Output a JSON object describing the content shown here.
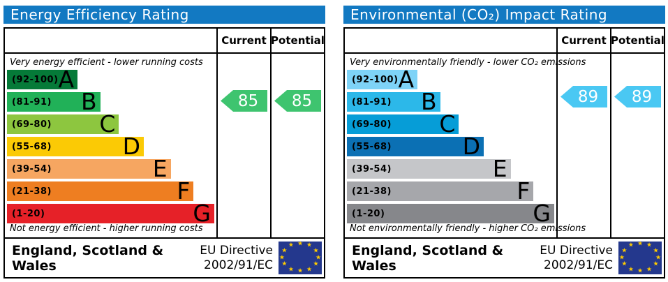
{
  "chart_data": [
    {
      "type": "bar",
      "title": "Energy Efficiency Rating",
      "categories": [
        "A (92-100)",
        "B (81-91)",
        "C (69-80)",
        "D (55-68)",
        "E (39-54)",
        "F (21-38)",
        "G (1-20)"
      ],
      "band_relative_widths_pct": [
        34,
        45,
        54,
        66,
        79,
        90,
        100
      ],
      "current": 85,
      "potential": 85,
      "current_band": "B",
      "potential_band": "B"
    },
    {
      "type": "bar",
      "title": "Environmental (CO₂) Impact Rating",
      "categories": [
        "A (92-100)",
        "B (81-91)",
        "C (69-80)",
        "D (55-68)",
        "E (39-54)",
        "F (21-38)",
        "G (1-20)"
      ],
      "band_relative_widths_pct": [
        34,
        45,
        54,
        66,
        79,
        90,
        100
      ],
      "current": 89,
      "potential": 89,
      "current_band": "B",
      "potential_band": "B"
    }
  ],
  "panels": [
    {
      "id": "energy",
      "title": "Energy Efficiency Rating",
      "columns": {
        "current": "Current",
        "potential": "Potential"
      },
      "top_caption": "Very energy efficient - lower running costs",
      "bottom_caption": "Not energy efficient - higher running costs",
      "bands": [
        {
          "grade": "A",
          "range": "(92-100)",
          "color": "#057A38",
          "width_pct": 34
        },
        {
          "grade": "B",
          "range": "(81-91)",
          "color": "#21B158",
          "width_pct": 45
        },
        {
          "grade": "C",
          "range": "(69-80)",
          "color": "#8DC63F",
          "width_pct": 54
        },
        {
          "grade": "D",
          "range": "(55-68)",
          "color": "#FBCA05",
          "width_pct": 66
        },
        {
          "grade": "E",
          "range": "(39-54)",
          "color": "#F6A661",
          "width_pct": 79
        },
        {
          "grade": "F",
          "range": "(21-38)",
          "color": "#EE7E21",
          "width_pct": 90
        },
        {
          "grade": "G",
          "range": "(1-20)",
          "color": "#E62128",
          "width_pct": 100
        }
      ],
      "current": {
        "value": "85",
        "color": "#3EC46F"
      },
      "potential": {
        "value": "85",
        "color": "#3EC46F"
      },
      "footer": {
        "region": "England, Scotland & Wales",
        "directive_line1": "EU Directive",
        "directive_line2": "2002/91/EC",
        "flag_color": "#24388d",
        "star_color": "#ffcc00"
      }
    },
    {
      "id": "co2",
      "title": "Environmental (CO₂) Impact Rating",
      "columns": {
        "current": "Current",
        "potential": "Potential"
      },
      "top_caption": "Very environmentally friendly - lower CO₂ emissions",
      "bottom_caption": "Not environmentally friendly - higher CO₂ emissions",
      "bands": [
        {
          "grade": "A",
          "range": "(92-100)",
          "color": "#7ED3F7",
          "width_pct": 34
        },
        {
          "grade": "B",
          "range": "(81-91)",
          "color": "#2CB8E9",
          "width_pct": 45
        },
        {
          "grade": "C",
          "range": "(69-80)",
          "color": "#069DD7",
          "width_pct": 54
        },
        {
          "grade": "D",
          "range": "(55-68)",
          "color": "#0B70B4",
          "width_pct": 66
        },
        {
          "grade": "E",
          "range": "(39-54)",
          "color": "#C5C6C9",
          "width_pct": 79
        },
        {
          "grade": "F",
          "range": "(21-38)",
          "color": "#A6A7AB",
          "width_pct": 90
        },
        {
          "grade": "G",
          "range": "(1-20)",
          "color": "#86878B",
          "width_pct": 100
        }
      ],
      "current": {
        "value": "89",
        "color": "#4AC8F3"
      },
      "potential": {
        "value": "89",
        "color": "#4AC8F3"
      },
      "footer": {
        "region": "England, Scotland & Wales",
        "directive_line1": "EU Directive",
        "directive_line2": "2002/91/EC",
        "flag_color": "#24388d",
        "star_color": "#ffcc00"
      }
    }
  ]
}
